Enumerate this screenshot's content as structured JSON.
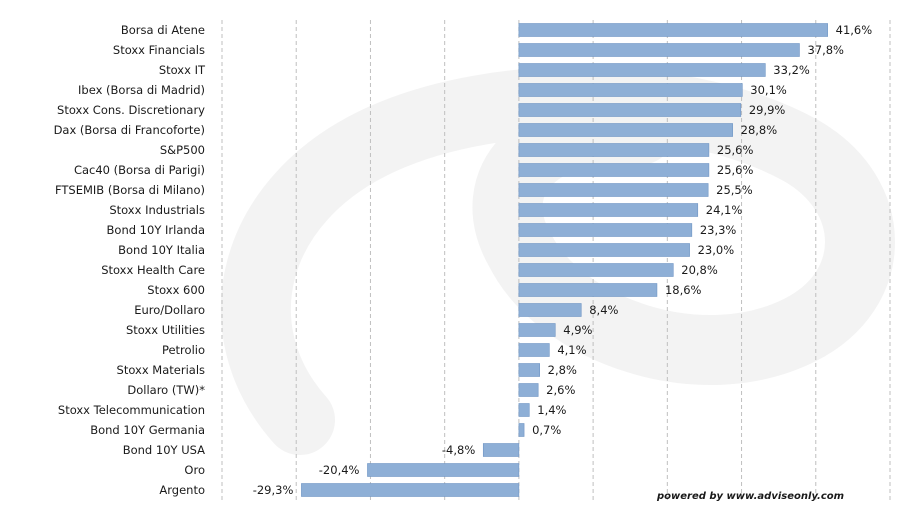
{
  "chart_data": {
    "type": "bar",
    "orientation": "horizontal",
    "categories": [
      "Borsa di Atene",
      "Stoxx Financials",
      "Stoxx IT",
      "Ibex (Borsa di Madrid)",
      "Stoxx Cons. Discretionary",
      "Dax (Borsa di Francoforte)",
      "S&P500",
      "Cac40 (Borsa di Parigi)",
      "FTSEMIB (Borsa di Milano)",
      "Stoxx Industrials",
      "Bond 10Y Irlanda",
      "Bond 10Y Italia",
      "Stoxx Health Care",
      "Stoxx 600",
      "Euro/Dollaro",
      "Stoxx Utilities",
      "Petrolio",
      "Stoxx Materials",
      "Dollaro (TW)*",
      "Stoxx Telecommunication",
      "Bond 10Y Germania",
      "Bond 10Y USA",
      "Oro",
      "Argento"
    ],
    "values": [
      41.6,
      37.8,
      33.2,
      30.1,
      29.9,
      28.8,
      25.6,
      25.6,
      25.5,
      24.1,
      23.3,
      23.0,
      20.8,
      18.6,
      8.4,
      4.9,
      4.1,
      2.8,
      2.6,
      1.4,
      0.7,
      -4.8,
      -20.4,
      -29.3
    ],
    "value_labels": [
      "41,6%",
      "37,8%",
      "33,2%",
      "30,1%",
      "29,9%",
      "28,8%",
      "25,6%",
      "25,6%",
      "25,5%",
      "24,1%",
      "23,3%",
      "23,0%",
      "20,8%",
      "18,6%",
      "8,4%",
      "4,9%",
      "4,1%",
      "2,8%",
      "2,6%",
      "1,4%",
      "0,7%",
      "-4,8%",
      "-20,4%",
      "-29,3%"
    ],
    "xlim": [
      -40,
      50
    ],
    "grid": "vertical-dashed",
    "bar_color": "#8eafd6",
    "bar_edge_color": "#6f95c4",
    "grid_color": "#bfbfbf",
    "watermark_color": "#f3f3f3"
  },
  "credit": "powered by  www.adviseonly.com"
}
